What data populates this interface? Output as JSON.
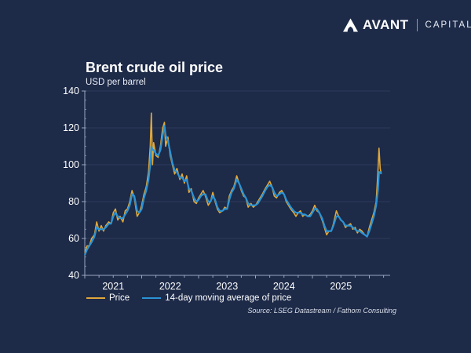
{
  "brand": {
    "name": "AVANT",
    "sub": "CAPITAL",
    "logo_icon": "avant-mountain-logo-icon"
  },
  "colors": {
    "background": "#1d2a48",
    "price": "#e0a83a",
    "moving_average": "#2a93d5",
    "axis": "#9aa6bf",
    "gridline": "#2d3b5c"
  },
  "chart_data": {
    "type": "line",
    "title": "Brent crude oil price",
    "subtitle": "USD per barrel",
    "xlabel": "",
    "ylabel": "USD per barrel",
    "ylim": [
      40,
      140
    ],
    "yticks": [
      40,
      60,
      80,
      100,
      120,
      140
    ],
    "xlim": [
      2021.0,
      2026.25
    ],
    "xticks": [
      "2021",
      "2022",
      "2023",
      "2024",
      "2025"
    ],
    "grid": true,
    "legend_position": "bottom-left",
    "legend": [
      "Price",
      "14-day moving average of price"
    ],
    "source": "Source: LSEG Datastream / Fathom Consulting",
    "series": [
      {
        "name": "Price",
        "x": [
          2021.0,
          2021.04,
          2021.08,
          2021.12,
          2021.17,
          2021.21,
          2021.25,
          2021.29,
          2021.33,
          2021.37,
          2021.42,
          2021.46,
          2021.5,
          2021.54,
          2021.58,
          2021.62,
          2021.67,
          2021.71,
          2021.75,
          2021.79,
          2021.83,
          2021.87,
          2021.92,
          2021.96,
          2022.0,
          2022.04,
          2022.08,
          2022.12,
          2022.15,
          2022.17,
          2022.19,
          2022.21,
          2022.25,
          2022.29,
          2022.33,
          2022.37,
          2022.4,
          2022.42,
          2022.46,
          2022.5,
          2022.54,
          2022.58,
          2022.62,
          2022.67,
          2022.71,
          2022.75,
          2022.79,
          2022.83,
          2022.87,
          2022.92,
          2022.96,
          2023.0,
          2023.04,
          2023.08,
          2023.12,
          2023.17,
          2023.21,
          2023.25,
          2023.29,
          2023.33,
          2023.37,
          2023.42,
          2023.46,
          2023.5,
          2023.54,
          2023.58,
          2023.62,
          2023.67,
          2023.71,
          2023.75,
          2023.79,
          2023.83,
          2023.87,
          2023.92,
          2023.96,
          2024.0,
          2024.04,
          2024.08,
          2024.12,
          2024.17,
          2024.21,
          2024.25,
          2024.29,
          2024.33,
          2024.37,
          2024.42,
          2024.46,
          2024.5,
          2024.54,
          2024.58,
          2024.62,
          2024.67,
          2024.71,
          2024.75,
          2024.79,
          2024.83,
          2024.87,
          2024.92,
          2024.96,
          2025.0,
          2025.04,
          2025.08,
          2025.12,
          2025.17,
          2025.21,
          2025.25,
          2025.29,
          2025.33,
          2025.37,
          2025.42,
          2025.46,
          2025.5,
          2025.54,
          2025.58,
          2025.62,
          2025.67,
          2025.71,
          2025.75,
          2025.79,
          2025.83,
          2025.87,
          2025.92,
          2025.96,
          2026.0,
          2026.04,
          2026.08,
          2026.12,
          2026.15,
          2026.17,
          2026.19,
          2026.21
        ],
        "values": [
          52,
          56,
          56,
          60,
          62,
          69,
          64,
          67,
          64,
          67,
          69,
          68,
          74,
          76,
          70,
          72,
          69,
          75,
          76,
          80,
          86,
          82,
          72,
          74,
          78,
          84,
          88,
          96,
          110,
          128,
          100,
          112,
          105,
          104,
          110,
          120,
          123,
          110,
          115,
          105,
          100,
          95,
          98,
          92,
          95,
          90,
          94,
          85,
          87,
          80,
          79,
          82,
          84,
          86,
          83,
          78,
          80,
          85,
          80,
          76,
          74,
          75,
          77,
          76,
          83,
          86,
          88,
          94,
          90,
          86,
          83,
          82,
          77,
          79,
          77,
          78,
          80,
          82,
          84,
          87,
          89,
          91,
          88,
          83,
          82,
          85,
          86,
          84,
          80,
          78,
          76,
          74,
          72,
          74,
          75,
          72,
          73,
          72,
          73,
          75,
          78,
          75,
          74,
          70,
          66,
          62,
          64,
          64,
          68,
          75,
          72,
          70,
          69,
          66,
          67,
          68,
          65,
          66,
          63,
          65,
          64,
          62,
          61,
          66,
          70,
          74,
          80,
          96,
          109,
          98,
          95
        ]
      },
      {
        "name": "14-day moving average of price",
        "x": [
          2021.0,
          2021.04,
          2021.08,
          2021.12,
          2021.17,
          2021.21,
          2021.25,
          2021.29,
          2021.33,
          2021.37,
          2021.42,
          2021.46,
          2021.5,
          2021.54,
          2021.58,
          2021.62,
          2021.67,
          2021.71,
          2021.75,
          2021.79,
          2021.83,
          2021.87,
          2021.92,
          2021.96,
          2022.0,
          2022.04,
          2022.08,
          2022.12,
          2022.15,
          2022.17,
          2022.19,
          2022.21,
          2022.25,
          2022.29,
          2022.33,
          2022.37,
          2022.4,
          2022.42,
          2022.46,
          2022.5,
          2022.54,
          2022.58,
          2022.62,
          2022.67,
          2022.71,
          2022.75,
          2022.79,
          2022.83,
          2022.87,
          2022.92,
          2022.96,
          2023.0,
          2023.04,
          2023.08,
          2023.12,
          2023.17,
          2023.21,
          2023.25,
          2023.29,
          2023.33,
          2023.37,
          2023.42,
          2023.46,
          2023.5,
          2023.54,
          2023.58,
          2023.62,
          2023.67,
          2023.71,
          2023.75,
          2023.79,
          2023.83,
          2023.87,
          2023.92,
          2023.96,
          2024.0,
          2024.04,
          2024.08,
          2024.12,
          2024.17,
          2024.21,
          2024.25,
          2024.29,
          2024.33,
          2024.37,
          2024.42,
          2024.46,
          2024.5,
          2024.54,
          2024.58,
          2024.62,
          2024.67,
          2024.71,
          2024.75,
          2024.79,
          2024.83,
          2024.87,
          2024.92,
          2024.96,
          2025.0,
          2025.04,
          2025.08,
          2025.12,
          2025.17,
          2025.21,
          2025.25,
          2025.29,
          2025.33,
          2025.37,
          2025.42,
          2025.46,
          2025.5,
          2025.54,
          2025.58,
          2025.62,
          2025.67,
          2025.71,
          2025.75,
          2025.79,
          2025.83,
          2025.87,
          2025.92,
          2025.96,
          2026.0,
          2026.04,
          2026.08,
          2026.12,
          2026.15,
          2026.17,
          2026.19,
          2026.21
        ],
        "values": [
          51,
          54,
          56,
          58,
          61,
          66,
          65,
          65,
          65,
          66,
          68,
          68,
          72,
          74,
          72,
          71,
          71,
          73,
          75,
          78,
          84,
          83,
          75,
          74,
          76,
          82,
          86,
          92,
          100,
          110,
          108,
          108,
          106,
          105,
          108,
          116,
          121,
          116,
          113,
          107,
          101,
          97,
          96,
          93,
          93,
          91,
          92,
          87,
          86,
          82,
          80,
          81,
          83,
          84,
          84,
          80,
          80,
          83,
          81,
          77,
          75,
          75,
          76,
          76,
          81,
          85,
          87,
          92,
          90,
          87,
          84,
          82,
          79,
          78,
          78,
          78,
          79,
          81,
          83,
          86,
          88,
          89,
          88,
          85,
          83,
          84,
          85,
          84,
          81,
          79,
          77,
          75,
          74,
          74,
          74,
          73,
          73,
          72,
          72,
          74,
          76,
          76,
          74,
          71,
          67,
          64,
          64,
          64,
          67,
          72,
          72,
          70,
          69,
          67,
          67,
          67,
          66,
          65,
          64,
          64,
          63,
          62,
          61,
          64,
          68,
          72,
          78,
          86,
          96,
          96,
          95
        ]
      }
    ]
  }
}
